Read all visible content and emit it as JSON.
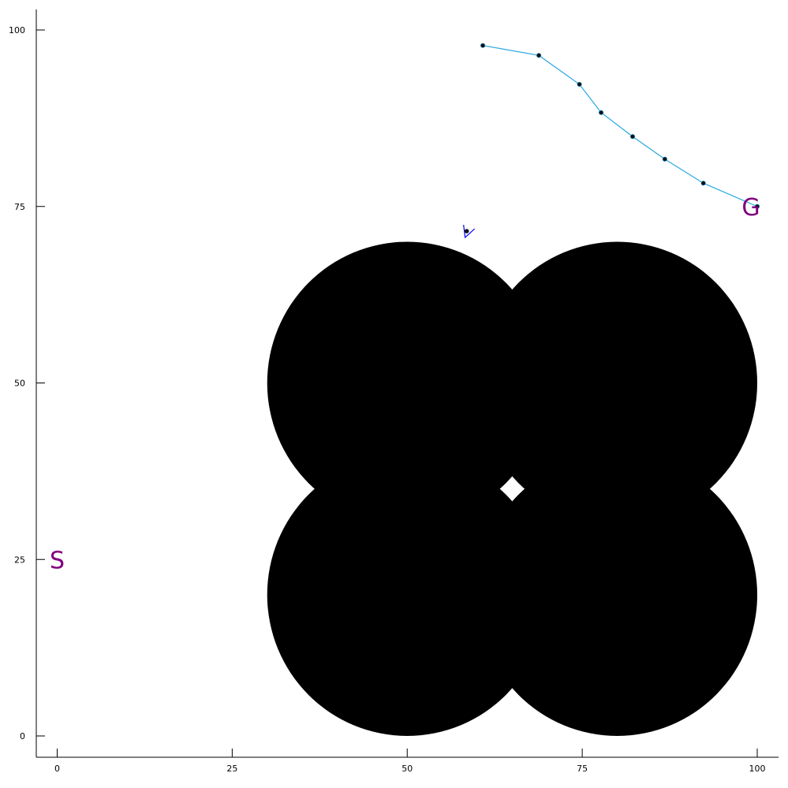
{
  "chart_data": {
    "type": "scatter",
    "title": "",
    "xlabel": "",
    "ylabel": "",
    "xlim": [
      -3,
      103
    ],
    "ylim": [
      -3,
      103
    ],
    "x_ticks": [
      0,
      25,
      50,
      75,
      100
    ],
    "y_ticks": [
      0,
      25,
      50,
      75,
      100
    ],
    "x_tick_labels": [
      "0",
      "25",
      "50",
      "75",
      "100"
    ],
    "y_tick_labels": [
      "0",
      "25",
      "50",
      "75",
      "100"
    ],
    "grid": false,
    "legend": false,
    "obstacles": [
      {
        "cx": 50,
        "cy": 50,
        "r": 20
      },
      {
        "cx": 80,
        "cy": 50,
        "r": 20
      },
      {
        "cx": 50,
        "cy": 20,
        "r": 20
      },
      {
        "cx": 80,
        "cy": 20,
        "r": 20
      }
    ],
    "obstacle_color": "#000000",
    "path": {
      "color": "#2aa7e0",
      "point_color": "#111111",
      "points": [
        {
          "x": 60.8,
          "y": 97.8
        },
        {
          "x": 68.8,
          "y": 96.4
        },
        {
          "x": 74.6,
          "y": 92.3
        },
        {
          "x": 77.7,
          "y": 88.3
        },
        {
          "x": 82.2,
          "y": 84.9
        },
        {
          "x": 86.8,
          "y": 81.7
        },
        {
          "x": 92.3,
          "y": 78.3
        },
        {
          "x": 100.0,
          "y": 75.0
        }
      ]
    },
    "agent": {
      "x": 58.5,
      "y": 71.5,
      "color": "#0000ff"
    },
    "start": {
      "text": "S",
      "x": 0,
      "y": 25,
      "color": "#800080"
    },
    "goal": {
      "text": "G",
      "x": 100,
      "y": 75,
      "color": "#800080"
    }
  }
}
